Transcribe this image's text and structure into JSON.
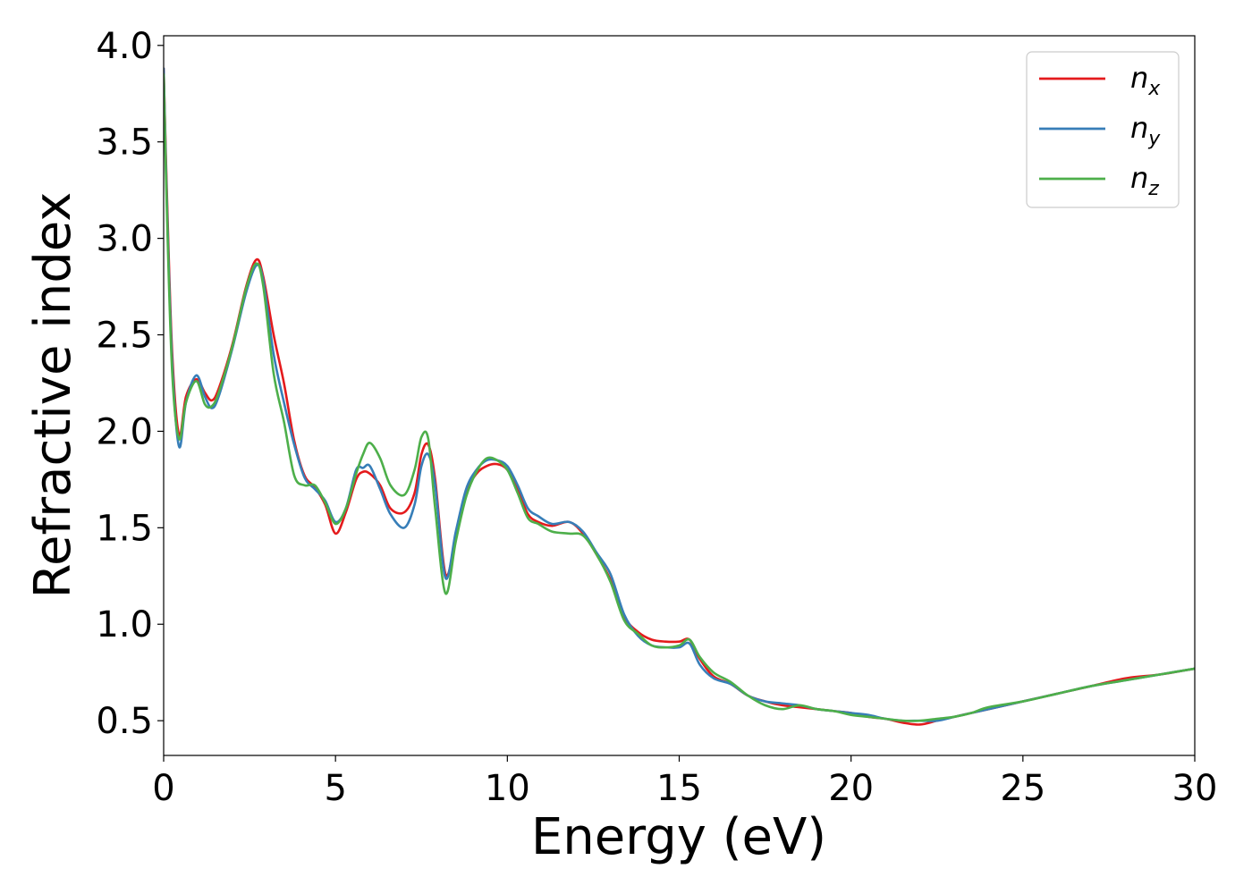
{
  "chart_data": {
    "type": "line",
    "xlabel": "Energy (eV)",
    "ylabel": "Refractive index",
    "xlim": [
      0,
      30
    ],
    "ylim": [
      0.32,
      4.05
    ],
    "xticks": [
      0,
      5,
      10,
      15,
      20,
      25,
      30
    ],
    "xtick_labels": [
      "0",
      "5",
      "10",
      "15",
      "20",
      "25",
      "30"
    ],
    "yticks": [
      0.5,
      1.0,
      1.5,
      2.0,
      2.5,
      3.0,
      3.5,
      4.0
    ],
    "ytick_labels": [
      "0.5",
      "1.0",
      "1.5",
      "2.0",
      "2.5",
      "3.0",
      "3.5",
      "4.0"
    ],
    "grid": false,
    "legend_position": "top-right",
    "series": [
      {
        "name": "n_x",
        "label_main": "n",
        "label_sub": "x",
        "color": "#e41a1c",
        "x": [
          0,
          0.1,
          0.25,
          0.45,
          0.65,
          0.95,
          1.2,
          1.4,
          1.6,
          2.0,
          2.4,
          2.7,
          2.9,
          3.2,
          3.5,
          3.8,
          4.1,
          4.4,
          4.7,
          5.0,
          5.3,
          5.6,
          5.8,
          6.0,
          6.3,
          6.6,
          7.0,
          7.3,
          7.5,
          7.7,
          7.9,
          8.2,
          8.5,
          8.8,
          9.1,
          9.4,
          9.7,
          10.0,
          10.3,
          10.6,
          10.9,
          11.3,
          11.8,
          12.2,
          12.6,
          13.0,
          13.4,
          13.8,
          14.2,
          14.6,
          15.0,
          15.3,
          15.6,
          16.0,
          16.5,
          17.0,
          17.5,
          18.0,
          18.5,
          19.0,
          19.5,
          20.0,
          20.5,
          21.0,
          21.5,
          22.0,
          22.5,
          23.0,
          23.5,
          24.0,
          25.0,
          26.0,
          27.0,
          28.0,
          29.0,
          30.0
        ],
        "values": [
          3.88,
          3.2,
          2.4,
          1.98,
          2.18,
          2.27,
          2.2,
          2.16,
          2.22,
          2.45,
          2.75,
          2.89,
          2.8,
          2.5,
          2.25,
          1.95,
          1.77,
          1.71,
          1.62,
          1.47,
          1.58,
          1.75,
          1.79,
          1.78,
          1.72,
          1.6,
          1.58,
          1.68,
          1.88,
          1.93,
          1.75,
          1.26,
          1.45,
          1.68,
          1.78,
          1.82,
          1.83,
          1.8,
          1.7,
          1.57,
          1.53,
          1.51,
          1.53,
          1.47,
          1.36,
          1.23,
          1.04,
          0.96,
          0.92,
          0.91,
          0.91,
          0.92,
          0.82,
          0.73,
          0.69,
          0.63,
          0.6,
          0.58,
          0.57,
          0.56,
          0.55,
          0.54,
          0.52,
          0.51,
          0.49,
          0.48,
          0.5,
          0.52,
          0.54,
          0.56,
          0.6,
          0.64,
          0.68,
          0.72,
          0.74,
          0.77
        ]
      },
      {
        "name": "n_y",
        "label_main": "n",
        "label_sub": "y",
        "color": "#377eb8",
        "x": [
          0,
          0.1,
          0.25,
          0.45,
          0.65,
          0.95,
          1.2,
          1.4,
          1.6,
          2.0,
          2.4,
          2.7,
          2.9,
          3.2,
          3.5,
          3.8,
          4.1,
          4.4,
          4.7,
          5.0,
          5.3,
          5.6,
          5.8,
          6.0,
          6.3,
          6.6,
          7.0,
          7.3,
          7.5,
          7.7,
          7.9,
          8.2,
          8.5,
          8.8,
          9.1,
          9.4,
          9.7,
          10.0,
          10.3,
          10.6,
          10.9,
          11.3,
          11.8,
          12.2,
          12.6,
          13.0,
          13.4,
          13.8,
          14.2,
          14.6,
          15.0,
          15.3,
          15.6,
          16.0,
          16.5,
          17.0,
          17.5,
          18.0,
          18.5,
          19.0,
          19.5,
          20.0,
          20.5,
          21.0,
          21.5,
          22.0,
          22.5,
          23.0,
          23.5,
          24.0,
          25.0,
          26.0,
          27.0,
          28.0,
          29.0,
          30.0
        ],
        "values": [
          3.88,
          3.15,
          2.35,
          1.92,
          2.15,
          2.29,
          2.18,
          2.12,
          2.18,
          2.43,
          2.72,
          2.86,
          2.78,
          2.4,
          2.15,
          1.93,
          1.76,
          1.7,
          1.64,
          1.53,
          1.6,
          1.8,
          1.81,
          1.82,
          1.7,
          1.57,
          1.5,
          1.62,
          1.82,
          1.88,
          1.72,
          1.24,
          1.48,
          1.7,
          1.8,
          1.85,
          1.85,
          1.82,
          1.72,
          1.6,
          1.56,
          1.52,
          1.53,
          1.48,
          1.37,
          1.26,
          1.05,
          0.94,
          0.89,
          0.88,
          0.88,
          0.9,
          0.79,
          0.72,
          0.69,
          0.63,
          0.6,
          0.59,
          0.58,
          0.56,
          0.55,
          0.54,
          0.53,
          0.51,
          0.5,
          0.5,
          0.5,
          0.52,
          0.54,
          0.56,
          0.6,
          0.64,
          0.68,
          0.71,
          0.74,
          0.77
        ]
      },
      {
        "name": "n_z",
        "label_main": "n",
        "label_sub": "z",
        "color": "#4daf4a",
        "x": [
          0,
          0.1,
          0.25,
          0.45,
          0.65,
          0.95,
          1.2,
          1.4,
          1.6,
          2.0,
          2.4,
          2.7,
          2.9,
          3.2,
          3.5,
          3.8,
          4.1,
          4.4,
          4.7,
          5.0,
          5.3,
          5.6,
          5.8,
          6.0,
          6.3,
          6.6,
          7.0,
          7.3,
          7.5,
          7.7,
          7.9,
          8.2,
          8.5,
          8.8,
          9.1,
          9.4,
          9.7,
          10.0,
          10.3,
          10.6,
          10.9,
          11.3,
          11.8,
          12.2,
          12.6,
          13.0,
          13.4,
          13.8,
          14.2,
          14.6,
          15.0,
          15.3,
          15.6,
          16.0,
          16.5,
          17.0,
          17.5,
          18.0,
          18.5,
          19.0,
          19.5,
          20.0,
          20.5,
          21.0,
          21.5,
          22.0,
          22.5,
          23.0,
          23.5,
          24.0,
          25.0,
          26.0,
          27.0,
          28.0,
          29.0,
          30.0
        ],
        "values": [
          3.85,
          3.1,
          2.3,
          1.96,
          2.15,
          2.26,
          2.14,
          2.13,
          2.2,
          2.44,
          2.74,
          2.87,
          2.75,
          2.3,
          2.05,
          1.77,
          1.72,
          1.72,
          1.63,
          1.52,
          1.6,
          1.78,
          1.88,
          1.94,
          1.86,
          1.72,
          1.67,
          1.8,
          1.97,
          1.96,
          1.6,
          1.16,
          1.43,
          1.66,
          1.79,
          1.86,
          1.85,
          1.8,
          1.68,
          1.55,
          1.52,
          1.48,
          1.47,
          1.46,
          1.36,
          1.22,
          1.02,
          0.95,
          0.89,
          0.88,
          0.89,
          0.92,
          0.83,
          0.75,
          0.7,
          0.63,
          0.58,
          0.56,
          0.58,
          0.56,
          0.55,
          0.53,
          0.52,
          0.51,
          0.5,
          0.5,
          0.51,
          0.52,
          0.54,
          0.57,
          0.6,
          0.64,
          0.68,
          0.71,
          0.74,
          0.77
        ]
      }
    ]
  }
}
